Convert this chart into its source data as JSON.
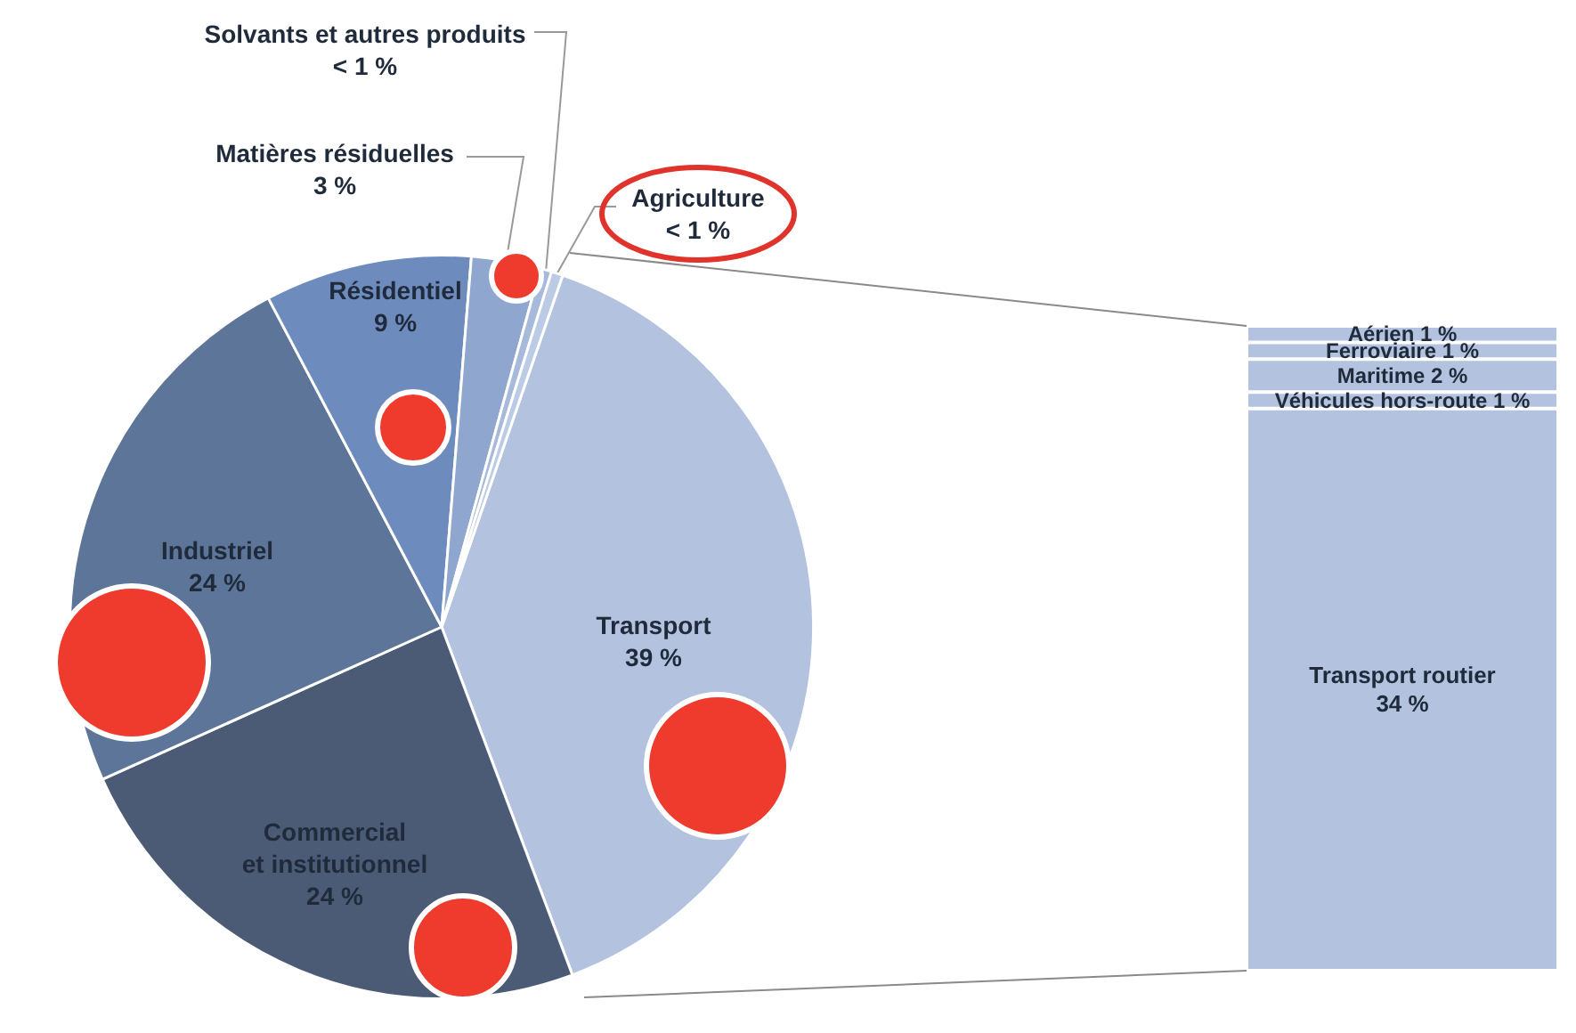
{
  "chart_data": [
    {
      "type": "pie",
      "categories": [
        "Transport",
        "Commercial\net institutionnel",
        "Industriel",
        "Résidentiel",
        "Matières résiduelles",
        "Solvants et autres produits",
        "Agriculture"
      ],
      "values": [
        39,
        24,
        24,
        9,
        3,
        0.5,
        0.5
      ],
      "value_labels": [
        "39 %",
        "24 %",
        "24 %",
        "9 %",
        "3 %",
        "< 1 %",
        "< 1 %"
      ],
      "colors": [
        "#b3c3df",
        "#4b5b75",
        "#5d7599",
        "#6e8bbd",
        "#8fa6cf",
        "#a8badb",
        "#bccbe5"
      ],
      "data_labels": true,
      "legend": false
    },
    {
      "type": "bar",
      "stacked": true,
      "categories": [
        null
      ],
      "data_labels": true,
      "legend": false,
      "series": [
        {
          "name": "Transport routier",
          "color": "#b3c3df",
          "values": [
            34
          ],
          "value_labels": [
            "34 %"
          ]
        },
        {
          "name": "Véhicules hors-route",
          "color": "#b3c3df",
          "values": [
            1
          ],
          "value_labels": [
            "1 %"
          ]
        },
        {
          "name": "Maritime",
          "color": "#b3c3df",
          "values": [
            2
          ],
          "value_labels": [
            "2 %"
          ]
        },
        {
          "name": "Ferroviaire",
          "color": "#b3c3df",
          "values": [
            1
          ],
          "value_labels": [
            "1 %"
          ]
        },
        {
          "name": "Aérien",
          "color": "#b3c3df",
          "values": [
            1
          ],
          "value_labels": [
            "1 %"
          ]
        }
      ]
    }
  ]
}
